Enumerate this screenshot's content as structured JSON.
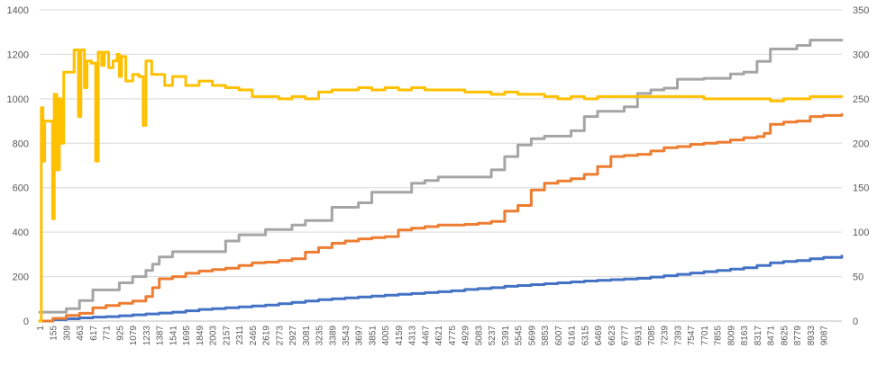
{
  "chart_data": {
    "type": "line",
    "title": "",
    "xlabel": "",
    "ylabel": "",
    "x_ticks": [
      "1",
      "155",
      "309",
      "463",
      "617",
      "771",
      "925",
      "1079",
      "1233",
      "1387",
      "1541",
      "1695",
      "1849",
      "2003",
      "2157",
      "2311",
      "2465",
      "2619",
      "2773",
      "2927",
      "3081",
      "3235",
      "3389",
      "3543",
      "3697",
      "3851",
      "4005",
      "4159",
      "4313",
      "4467",
      "4621",
      "4775",
      "4929",
      "5083",
      "5237",
      "5391",
      "5545",
      "5699",
      "5853",
      "6007",
      "6161",
      "6315",
      "6469",
      "6623",
      "6777",
      "6931",
      "7085",
      "7239",
      "7393",
      "7547",
      "7701",
      "7855",
      "8009",
      "8163",
      "8317",
      "8471",
      "8625",
      "8779",
      "8933",
      "9087"
    ],
    "x_range": [
      1,
      9300
    ],
    "y_left": {
      "ticks": [
        "0",
        "200",
        "400",
        "600",
        "800",
        "1000",
        "1200",
        "1400"
      ],
      "ylim": [
        0,
        1400
      ]
    },
    "y_right": {
      "ticks": [
        "0",
        "50",
        "100",
        "150",
        "200",
        "250",
        "300",
        "350"
      ],
      "ylim": [
        0,
        350
      ]
    },
    "gridlines": true,
    "legend": "none",
    "series": [
      {
        "axis": "left",
        "color": "#4472C4",
        "points": [
          [
            1,
            0
          ],
          [
            155,
            6
          ],
          [
            309,
            10
          ],
          [
            463,
            14
          ],
          [
            617,
            18
          ],
          [
            771,
            20
          ],
          [
            925,
            24
          ],
          [
            1079,
            28
          ],
          [
            1233,
            32
          ],
          [
            1387,
            36
          ],
          [
            1541,
            40
          ],
          [
            1695,
            46
          ],
          [
            1849,
            52
          ],
          [
            2003,
            56
          ],
          [
            2157,
            60
          ],
          [
            2311,
            64
          ],
          [
            2465,
            68
          ],
          [
            2619,
            72
          ],
          [
            2773,
            78
          ],
          [
            2927,
            84
          ],
          [
            3081,
            90
          ],
          [
            3235,
            96
          ],
          [
            3389,
            100
          ],
          [
            3543,
            104
          ],
          [
            3697,
            108
          ],
          [
            3851,
            112
          ],
          [
            4005,
            116
          ],
          [
            4159,
            120
          ],
          [
            4313,
            124
          ],
          [
            4467,
            128
          ],
          [
            4621,
            132
          ],
          [
            4775,
            136
          ],
          [
            4929,
            142
          ],
          [
            5083,
            146
          ],
          [
            5237,
            150
          ],
          [
            5391,
            156
          ],
          [
            5545,
            160
          ],
          [
            5699,
            164
          ],
          [
            5853,
            168
          ],
          [
            6007,
            172
          ],
          [
            6161,
            176
          ],
          [
            6315,
            180
          ],
          [
            6469,
            183
          ],
          [
            6623,
            186
          ],
          [
            6777,
            189
          ],
          [
            6931,
            192
          ],
          [
            7085,
            198
          ],
          [
            7239,
            204
          ],
          [
            7393,
            210
          ],
          [
            7547,
            216
          ],
          [
            7701,
            222
          ],
          [
            7855,
            228
          ],
          [
            8009,
            234
          ],
          [
            8163,
            240
          ],
          [
            8317,
            250
          ],
          [
            8471,
            262
          ],
          [
            8625,
            268
          ],
          [
            8779,
            272
          ],
          [
            8933,
            280
          ],
          [
            9087,
            286
          ],
          [
            9300,
            292
          ]
        ]
      },
      {
        "axis": "left",
        "color": "#ED7D31",
        "points": [
          [
            1,
            0
          ],
          [
            155,
            12
          ],
          [
            309,
            25
          ],
          [
            463,
            35
          ],
          [
            617,
            60
          ],
          [
            771,
            70
          ],
          [
            925,
            80
          ],
          [
            1079,
            90
          ],
          [
            1233,
            110
          ],
          [
            1310,
            150
          ],
          [
            1387,
            190
          ],
          [
            1541,
            200
          ],
          [
            1695,
            215
          ],
          [
            1849,
            225
          ],
          [
            2003,
            232
          ],
          [
            2157,
            238
          ],
          [
            2311,
            250
          ],
          [
            2465,
            262
          ],
          [
            2619,
            265
          ],
          [
            2773,
            272
          ],
          [
            2927,
            280
          ],
          [
            3081,
            310
          ],
          [
            3235,
            330
          ],
          [
            3389,
            350
          ],
          [
            3543,
            360
          ],
          [
            3697,
            370
          ],
          [
            3851,
            375
          ],
          [
            4005,
            380
          ],
          [
            4159,
            410
          ],
          [
            4313,
            418
          ],
          [
            4467,
            425
          ],
          [
            4621,
            432
          ],
          [
            4775,
            432
          ],
          [
            4929,
            435
          ],
          [
            5083,
            440
          ],
          [
            5237,
            448
          ],
          [
            5391,
            495
          ],
          [
            5545,
            520
          ],
          [
            5699,
            590
          ],
          [
            5853,
            620
          ],
          [
            6007,
            630
          ],
          [
            6161,
            640
          ],
          [
            6315,
            660
          ],
          [
            6469,
            695
          ],
          [
            6623,
            740
          ],
          [
            6777,
            745
          ],
          [
            6931,
            750
          ],
          [
            7085,
            765
          ],
          [
            7239,
            780
          ],
          [
            7393,
            785
          ],
          [
            7547,
            795
          ],
          [
            7701,
            800
          ],
          [
            7855,
            805
          ],
          [
            8009,
            815
          ],
          [
            8163,
            825
          ],
          [
            8317,
            830
          ],
          [
            8400,
            845
          ],
          [
            8471,
            885
          ],
          [
            8625,
            895
          ],
          [
            8779,
            900
          ],
          [
            8933,
            920
          ],
          [
            9087,
            925
          ],
          [
            9300,
            930
          ]
        ]
      },
      {
        "axis": "right",
        "color": "#A5A5A5",
        "points": [
          [
            1,
            10
          ],
          [
            155,
            10
          ],
          [
            309,
            14
          ],
          [
            463,
            23
          ],
          [
            617,
            35
          ],
          [
            771,
            35
          ],
          [
            925,
            43
          ],
          [
            1079,
            50
          ],
          [
            1233,
            57
          ],
          [
            1310,
            64
          ],
          [
            1387,
            72
          ],
          [
            1541,
            78
          ],
          [
            1695,
            78
          ],
          [
            1849,
            78
          ],
          [
            2003,
            78
          ],
          [
            2157,
            90
          ],
          [
            2311,
            97
          ],
          [
            2465,
            97
          ],
          [
            2619,
            103
          ],
          [
            2773,
            103
          ],
          [
            2927,
            108
          ],
          [
            3081,
            113
          ],
          [
            3235,
            113
          ],
          [
            3389,
            128
          ],
          [
            3543,
            128
          ],
          [
            3697,
            133
          ],
          [
            3851,
            145
          ],
          [
            4005,
            145
          ],
          [
            4159,
            145
          ],
          [
            4313,
            155
          ],
          [
            4467,
            158
          ],
          [
            4621,
            162
          ],
          [
            4775,
            162
          ],
          [
            4929,
            162
          ],
          [
            5083,
            162
          ],
          [
            5237,
            170
          ],
          [
            5391,
            185
          ],
          [
            5545,
            198
          ],
          [
            5699,
            205
          ],
          [
            5853,
            208
          ],
          [
            6007,
            208
          ],
          [
            6161,
            214
          ],
          [
            6315,
            230
          ],
          [
            6469,
            236
          ],
          [
            6623,
            236
          ],
          [
            6777,
            241
          ],
          [
            6931,
            256
          ],
          [
            7085,
            260
          ],
          [
            7239,
            262
          ],
          [
            7393,
            272
          ],
          [
            7547,
            272
          ],
          [
            7701,
            273
          ],
          [
            7855,
            273
          ],
          [
            8009,
            278
          ],
          [
            8163,
            280
          ],
          [
            8317,
            292
          ],
          [
            8471,
            306
          ],
          [
            8625,
            306
          ],
          [
            8779,
            310
          ],
          [
            8933,
            316
          ],
          [
            9087,
            316
          ],
          [
            9300,
            316
          ]
        ]
      },
      {
        "axis": "left",
        "color": "#FFC000",
        "points": [
          [
            1,
            0
          ],
          [
            20,
            960
          ],
          [
            40,
            720
          ],
          [
            60,
            900
          ],
          [
            120,
            900
          ],
          [
            150,
            460
          ],
          [
            170,
            1020
          ],
          [
            200,
            680
          ],
          [
            230,
            1000
          ],
          [
            250,
            800
          ],
          [
            280,
            1120
          ],
          [
            350,
            1120
          ],
          [
            400,
            1220
          ],
          [
            450,
            920
          ],
          [
            480,
            1220
          ],
          [
            520,
            1050
          ],
          [
            550,
            1170
          ],
          [
            600,
            1160
          ],
          [
            650,
            720
          ],
          [
            680,
            1210
          ],
          [
            720,
            1150
          ],
          [
            750,
            1210
          ],
          [
            800,
            1140
          ],
          [
            850,
            1170
          ],
          [
            900,
            1200
          ],
          [
            925,
            1100
          ],
          [
            950,
            1190
          ],
          [
            1000,
            1080
          ],
          [
            1079,
            1110
          ],
          [
            1150,
            1100
          ],
          [
            1200,
            880
          ],
          [
            1233,
            1170
          ],
          [
            1300,
            1110
          ],
          [
            1387,
            1110
          ],
          [
            1450,
            1060
          ],
          [
            1541,
            1100
          ],
          [
            1695,
            1060
          ],
          [
            1849,
            1080
          ],
          [
            2003,
            1060
          ],
          [
            2157,
            1050
          ],
          [
            2311,
            1040
          ],
          [
            2465,
            1010
          ],
          [
            2619,
            1010
          ],
          [
            2773,
            1000
          ],
          [
            2927,
            1010
          ],
          [
            3081,
            1000
          ],
          [
            3235,
            1030
          ],
          [
            3389,
            1040
          ],
          [
            3543,
            1040
          ],
          [
            3697,
            1050
          ],
          [
            3851,
            1040
          ],
          [
            4005,
            1050
          ],
          [
            4159,
            1040
          ],
          [
            4313,
            1050
          ],
          [
            4467,
            1040
          ],
          [
            4621,
            1040
          ],
          [
            4775,
            1040
          ],
          [
            4929,
            1030
          ],
          [
            5083,
            1030
          ],
          [
            5237,
            1020
          ],
          [
            5391,
            1030
          ],
          [
            5545,
            1020
          ],
          [
            5699,
            1020
          ],
          [
            5853,
            1010
          ],
          [
            6007,
            1000
          ],
          [
            6161,
            1010
          ],
          [
            6315,
            1000
          ],
          [
            6469,
            1010
          ],
          [
            6623,
            1010
          ],
          [
            6777,
            1010
          ],
          [
            6931,
            1010
          ],
          [
            7085,
            1010
          ],
          [
            7239,
            1010
          ],
          [
            7393,
            1010
          ],
          [
            7547,
            1010
          ],
          [
            7701,
            1000
          ],
          [
            7855,
            1000
          ],
          [
            8009,
            1000
          ],
          [
            8163,
            1000
          ],
          [
            8317,
            1000
          ],
          [
            8471,
            990
          ],
          [
            8625,
            1000
          ],
          [
            8779,
            1000
          ],
          [
            8933,
            1010
          ],
          [
            9087,
            1010
          ],
          [
            9300,
            1010
          ]
        ]
      }
    ]
  }
}
